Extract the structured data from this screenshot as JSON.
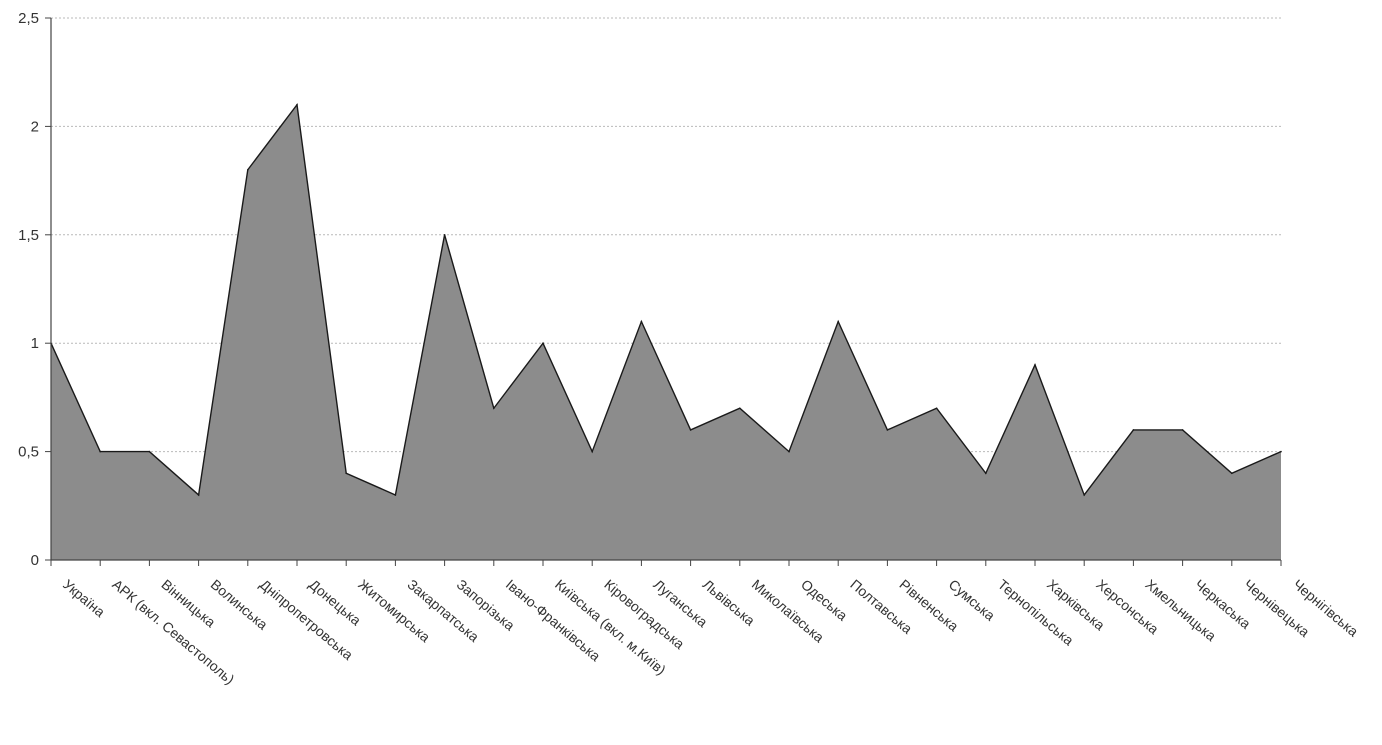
{
  "chart_data": {
    "type": "area",
    "title": "",
    "xlabel": "",
    "ylabel": "",
    "ylim": [
      0,
      2.5
    ],
    "yticks": [
      "0",
      "0,5",
      "1",
      "1,5",
      "2",
      "2,5"
    ],
    "grid": true,
    "legend": "none",
    "colors": {
      "fill": "#8c8c8c",
      "stroke": "#1a1a1a",
      "grid": "#b9b9b9",
      "axis": "#444444",
      "text": "#333333"
    },
    "categories": [
      "Україна",
      "АРК (вкл. Севастополь)",
      "Вінницька",
      "Волинська",
      "Дніпропетровська",
      "Донецька",
      "Житомирська",
      "Закарпатська",
      "Запорізька",
      "Івано-Франківська",
      "Київська (вкл. м.Київ)",
      "Кіровоградська",
      "Луганська",
      "Львівська",
      "Миколаївська",
      "Одеська",
      "Полтавська",
      "Рівненська",
      "Сумська",
      "Тернопільська",
      "Харківська",
      "Херсонська",
      "Хмельницька",
      "Черкаська",
      "Чернівецька",
      "Чернігівська"
    ],
    "values": [
      1.0,
      0.5,
      0.5,
      0.3,
      1.8,
      2.1,
      0.4,
      0.3,
      1.5,
      0.7,
      1.0,
      0.5,
      1.1,
      0.6,
      0.7,
      0.5,
      1.1,
      0.6,
      0.7,
      0.4,
      0.9,
      0.3,
      0.6,
      0.6,
      0.4,
      0.5
    ]
  }
}
